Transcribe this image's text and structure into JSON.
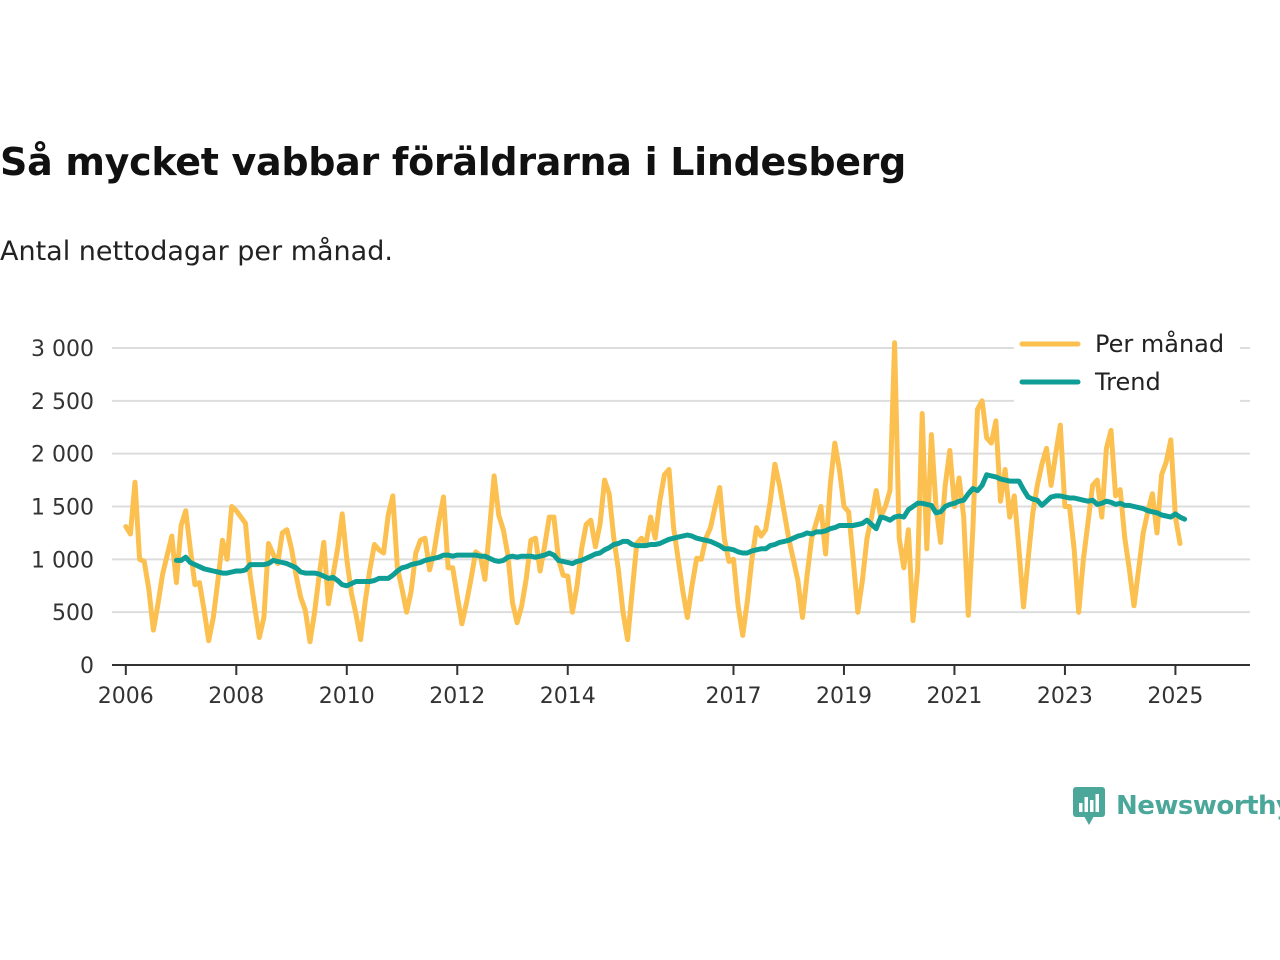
{
  "title": "Så mycket vabbar föräldrarna i Lindesberg",
  "subtitle": "Antal nettodagar per månad.",
  "brand": {
    "name": "Newsworthy",
    "color": "#4aa79a",
    "icon": "chart-bubble-icon"
  },
  "colors": {
    "monthly": "#fbc04f",
    "trend": "#0f9e96",
    "grid": "#dddddd",
    "axis": "#333333"
  },
  "chart_data": {
    "type": "line",
    "title": "Så mycket vabbar föräldrarna i Lindesberg",
    "xlabel": "",
    "ylabel": "",
    "xlim": [
      2005.75,
      2026.35
    ],
    "ylim": [
      0,
      3000
    ],
    "grid": true,
    "legend_position": "top-right",
    "x_ticks": [
      2006,
      2008,
      2010,
      2012,
      2014,
      2017,
      2019,
      2021,
      2023,
      2025
    ],
    "x_tick_labels": [
      "2006",
      "2008",
      "2010",
      "2012",
      "2014",
      "2017",
      "2019",
      "2021",
      "2023",
      "2025"
    ],
    "y_ticks": [
      0,
      500,
      1000,
      1500,
      2000,
      2500,
      3000
    ],
    "y_tick_labels": [
      "0",
      "500",
      "1 000",
      "1 500",
      "2 000",
      "2 500",
      "3 000"
    ],
    "series": [
      {
        "name": "Per månad",
        "start": [
          2006,
          1
        ],
        "values": [
          1310,
          1240,
          1730,
          1000,
          980,
          720,
          330,
          580,
          860,
          1040,
          1220,
          780,
          1320,
          1460,
          1100,
          760,
          780,
          520,
          230,
          450,
          800,
          1180,
          1000,
          1500,
          1460,
          1400,
          1340,
          850,
          550,
          260,
          450,
          1150,
          1050,
          960,
          1250,
          1280,
          1100,
          850,
          640,
          520,
          220,
          500,
          850,
          1160,
          580,
          850,
          1100,
          1430,
          1000,
          680,
          480,
          240,
          600,
          900,
          1140,
          1090,
          1060,
          1420,
          1600,
          920,
          720,
          500,
          700,
          1060,
          1180,
          1200,
          900,
          1080,
          1360,
          1590,
          920,
          920,
          650,
          390,
          590,
          820,
          1070,
          1040,
          810,
          1280,
          1790,
          1420,
          1280,
          1040,
          590,
          400,
          560,
          820,
          1180,
          1200,
          890,
          1130,
          1400,
          1400,
          1000,
          850,
          840,
          500,
          750,
          1100,
          1330,
          1370,
          1120,
          1330,
          1750,
          1620,
          1200,
          900,
          500,
          240,
          700,
          1150,
          1200,
          1150,
          1400,
          1200,
          1550,
          1800,
          1850,
          1300,
          1000,
          700,
          450,
          750,
          1010,
          1000,
          1200,
          1300,
          1500,
          1680,
          1200,
          980,
          1000,
          560,
          280,
          600,
          1000,
          1300,
          1220,
          1280,
          1550,
          1900,
          1700,
          1450,
          1200,
          1000,
          800,
          450,
          850,
          1200,
          1350,
          1500,
          1050,
          1700,
          2100,
          1850,
          1500,
          1450,
          1000,
          500,
          800,
          1200,
          1400,
          1650,
          1400,
          1500,
          1650,
          3050,
          1200,
          920,
          1280,
          420,
          900,
          2380,
          1100,
          2180,
          1500,
          1160,
          1700,
          2030,
          1500,
          1770,
          1400,
          470,
          1300,
          2420,
          2500,
          2150,
          2100,
          2310,
          1550,
          1850,
          1400,
          1600,
          1100,
          550,
          1000,
          1430,
          1700,
          1900,
          2050,
          1700,
          2000,
          2270,
          1500,
          1500,
          1100,
          500,
          1000,
          1350,
          1700,
          1750,
          1400,
          2050,
          2220,
          1600,
          1660,
          1200,
          900,
          560,
          900,
          1250,
          1450,
          1620,
          1250,
          1800,
          1920,
          2130,
          1400,
          1150
        ]
      },
      {
        "name": "Trend",
        "start": [
          2006,
          12
        ],
        "values": [
          990,
          990,
          1020,
          970,
          950,
          930,
          910,
          900,
          890,
          880,
          870,
          870,
          880,
          890,
          890,
          900,
          950,
          950,
          950,
          950,
          960,
          990,
          980,
          970,
          960,
          940,
          920,
          880,
          870,
          870,
          870,
          860,
          840,
          820,
          830,
          800,
          760,
          750,
          770,
          790,
          790,
          790,
          790,
          800,
          820,
          820,
          820,
          850,
          890,
          920,
          930,
          950,
          960,
          970,
          990,
          1000,
          1010,
          1020,
          1040,
          1040,
          1030,
          1040,
          1040,
          1040,
          1040,
          1040,
          1030,
          1030,
          1010,
          990,
          980,
          990,
          1020,
          1030,
          1020,
          1030,
          1030,
          1030,
          1020,
          1030,
          1040,
          1060,
          1040,
          990,
          980,
          970,
          960,
          980,
          990,
          1010,
          1030,
          1050,
          1060,
          1090,
          1110,
          1140,
          1150,
          1170,
          1170,
          1140,
          1130,
          1130,
          1130,
          1140,
          1140,
          1150,
          1170,
          1190,
          1200,
          1210,
          1220,
          1230,
          1220,
          1200,
          1190,
          1180,
          1170,
          1150,
          1130,
          1100,
          1100,
          1090,
          1070,
          1060,
          1060,
          1080,
          1090,
          1100,
          1100,
          1130,
          1140,
          1160,
          1170,
          1180,
          1200,
          1220,
          1230,
          1250,
          1240,
          1260,
          1260,
          1270,
          1290,
          1300,
          1320,
          1320,
          1320,
          1320,
          1330,
          1340,
          1370,
          1330,
          1290,
          1400,
          1390,
          1370,
          1400,
          1410,
          1400,
          1470,
          1500,
          1530,
          1530,
          1520,
          1510,
          1440,
          1450,
          1500,
          1520,
          1530,
          1550,
          1560,
          1620,
          1670,
          1650,
          1700,
          1800,
          1790,
          1780,
          1760,
          1750,
          1740,
          1740,
          1740,
          1660,
          1590,
          1570,
          1560,
          1510,
          1550,
          1590,
          1600,
          1600,
          1590,
          1580,
          1580,
          1570,
          1560,
          1550,
          1560,
          1520,
          1530,
          1550,
          1540,
          1520,
          1530,
          1510,
          1510,
          1500,
          1490,
          1480,
          1460,
          1450,
          1440,
          1420,
          1410,
          1400,
          1430,
          1400,
          1380
        ]
      }
    ]
  }
}
